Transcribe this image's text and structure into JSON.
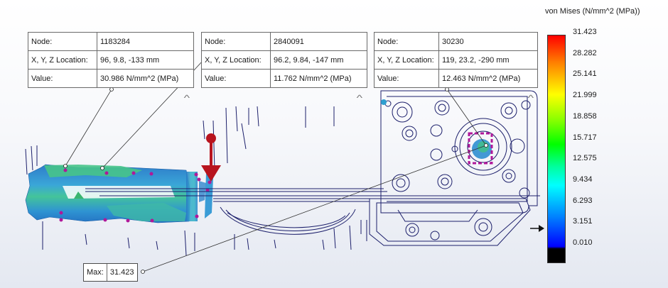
{
  "probes": [
    {
      "node_label": "Node:",
      "node": "1183284",
      "loc_label": "X, Y, Z Location:",
      "loc": "96, 9.8, -133 mm",
      "value_label": "Value:",
      "value": "30.986 N/mm^2 (MPa)"
    },
    {
      "node_label": "Node:",
      "node": "2840091",
      "loc_label": "X, Y, Z Location:",
      "loc": "96.2, 9.84, -147 mm",
      "value_label": "Value:",
      "value": "11.762 N/mm^2 (MPa)"
    },
    {
      "node_label": "Node:",
      "node": "30230",
      "loc_label": "X, Y, Z Location:",
      "loc": "119, 23.2, -290 mm",
      "value_label": "Value:",
      "value": "12.463 N/mm^2 (MPa)"
    }
  ],
  "max_label": {
    "key": "Max:",
    "value": "31.423"
  },
  "legend": {
    "title": "von Mises (N/mm^2 (MPa))",
    "ticks": [
      "31.423",
      "28.282",
      "25.141",
      "21.999",
      "18.858",
      "15.717",
      "12.575",
      "9.434",
      "6.293",
      "3.151",
      "0.010"
    ],
    "colors": {
      "max": "#ff0000",
      "mid": "#00ff00",
      "min": "#0000ff",
      "below_min": "#000000"
    }
  },
  "icons": {
    "collapse": "chevron-up-icon",
    "load": "force-arrow-icon",
    "pointer": "legend-pointer-icon"
  },
  "colors": {
    "fringe_blue": "#2f8fd0",
    "fringe_green": "#3fc08a",
    "fixture": "#b0189a",
    "wire": "#1c1f6b",
    "load": "#b8141e"
  }
}
